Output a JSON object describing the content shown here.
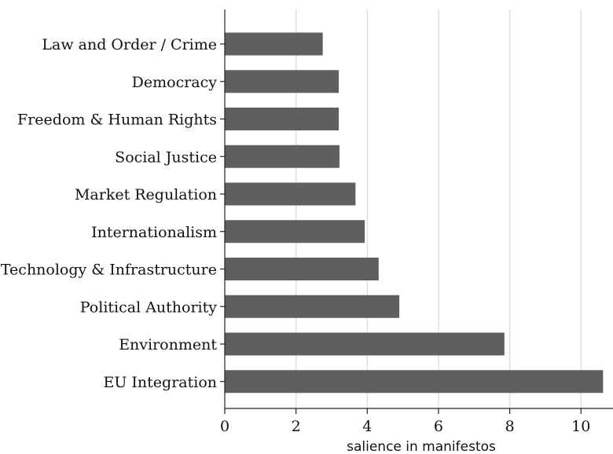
{
  "chart_data": {
    "type": "bar",
    "orientation": "horizontal",
    "categories": [
      "Law and Order / Crime",
      "Democracy",
      "Freedom & Human Rights",
      "Social Justice",
      "Market Regulation",
      "Internationalism",
      "Technology & Infrastructure",
      "Political Authority",
      "Environment",
      "EU Integration"
    ],
    "values": [
      2.75,
      3.2,
      3.2,
      3.22,
      3.67,
      3.93,
      4.32,
      4.9,
      7.85,
      10.62
    ],
    "title": "",
    "xlabel": "salience in manifestos",
    "ylabel": "",
    "xlim": [
      0,
      10.7
    ],
    "xticks": [
      0,
      2,
      4,
      6,
      8,
      10
    ],
    "grid": "vertical",
    "bar_color": "#5f5f5f",
    "grid_color": "#d9d9d9"
  }
}
